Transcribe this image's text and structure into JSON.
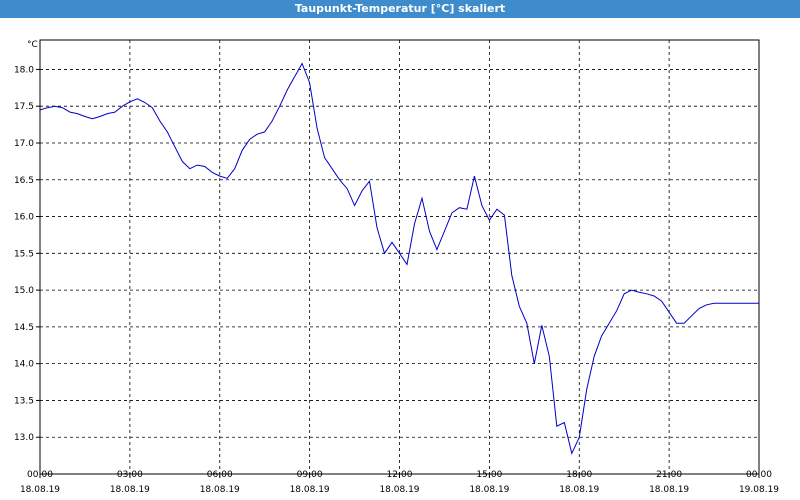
{
  "window": {
    "title": "Taupunkt-Temperatur [°C] skaliert"
  },
  "chart_data": {
    "type": "line",
    "title": "Taupunkt-Temperatur [°C] skaliert",
    "ylabel": "°C",
    "ylim": [
      12.5,
      18.4
    ],
    "xlim": [
      0,
      24
    ],
    "grid": true,
    "yticks": [
      "18.0",
      "17.5",
      "17.0",
      "16.5",
      "16.0",
      "15.5",
      "15.0",
      "14.5",
      "14.0",
      "13.5",
      "13.0"
    ],
    "ytick_values": [
      18.0,
      17.5,
      17.0,
      16.5,
      16.0,
      15.5,
      15.0,
      14.5,
      14.0,
      13.5,
      13.0
    ],
    "xticks": [
      {
        "time": "00:00",
        "date": "18.08.19"
      },
      {
        "time": "03:00",
        "date": "18.08.19"
      },
      {
        "time": "06:00",
        "date": "18.08.19"
      },
      {
        "time": "09:00",
        "date": "18.08.19"
      },
      {
        "time": "12:00",
        "date": "18.08.19"
      },
      {
        "time": "15:00",
        "date": "18.08.19"
      },
      {
        "time": "18:00",
        "date": "18.08.19"
      },
      {
        "time": "21:00",
        "date": "18.08.19"
      },
      {
        "time": "00:00",
        "date": "19.08.19"
      }
    ],
    "colors": {
      "line": "#0000c8",
      "grid": "#000000"
    },
    "series": [
      {
        "x": [
          0,
          0.25,
          0.5,
          0.75,
          1.0,
          1.25,
          1.5,
          1.75,
          2.0,
          2.25,
          2.5,
          2.75,
          3.0,
          3.25,
          3.5,
          3.75,
          4.0,
          4.25,
          4.5,
          4.75,
          5.0,
          5.25,
          5.5,
          5.75,
          6.0,
          6.25,
          6.5,
          6.75,
          7.0,
          7.25,
          7.5,
          7.75,
          8.0,
          8.25,
          8.5,
          8.75,
          9.0,
          9.25,
          9.5,
          9.75,
          10.0,
          10.25,
          10.5,
          10.75,
          11.0,
          11.25,
          11.5,
          11.75,
          12.0,
          12.25,
          12.5,
          12.75,
          13.0,
          13.25,
          13.5,
          13.75,
          14.0,
          14.25,
          14.5,
          14.75,
          15.0,
          15.25,
          15.5,
          15.75,
          16.0,
          16.25,
          16.5,
          16.75,
          17.0,
          17.25,
          17.5,
          17.75,
          18.0,
          18.25,
          18.5,
          18.75,
          19.0,
          19.25,
          19.5,
          19.75,
          20.0,
          20.25,
          20.5,
          20.75,
          21.0,
          21.25,
          21.5,
          21.75,
          22.0,
          22.25,
          22.5,
          22.75,
          23.0,
          23.25,
          23.5,
          23.75,
          24.0
        ],
        "values": [
          17.45,
          17.48,
          17.5,
          17.48,
          17.42,
          17.4,
          17.36,
          17.33,
          17.36,
          17.4,
          17.42,
          17.5,
          17.56,
          17.6,
          17.55,
          17.48,
          17.3,
          17.15,
          16.95,
          16.75,
          16.65,
          16.7,
          16.68,
          16.6,
          16.55,
          16.52,
          16.65,
          16.9,
          17.05,
          17.12,
          17.15,
          17.3,
          17.5,
          17.72,
          17.9,
          18.08,
          17.82,
          17.2,
          16.8,
          16.65,
          16.5,
          16.38,
          16.15,
          16.35,
          16.48,
          15.85,
          15.5,
          15.65,
          15.5,
          15.35,
          15.9,
          16.25,
          15.8,
          15.55,
          15.8,
          16.05,
          16.12,
          16.1,
          16.55,
          16.15,
          15.95,
          16.1,
          16.02,
          15.2,
          14.78,
          14.55,
          14.0,
          14.52,
          14.1,
          13.15,
          13.2,
          12.78,
          13.0,
          13.65,
          14.1,
          14.38,
          14.55,
          14.72,
          14.95,
          15.0,
          14.97,
          14.95,
          14.92,
          14.85,
          14.7,
          14.55,
          14.55,
          14.65,
          14.75,
          14.8,
          14.82,
          14.82,
          14.82,
          14.82,
          14.82,
          14.82,
          14.82
        ]
      }
    ]
  }
}
